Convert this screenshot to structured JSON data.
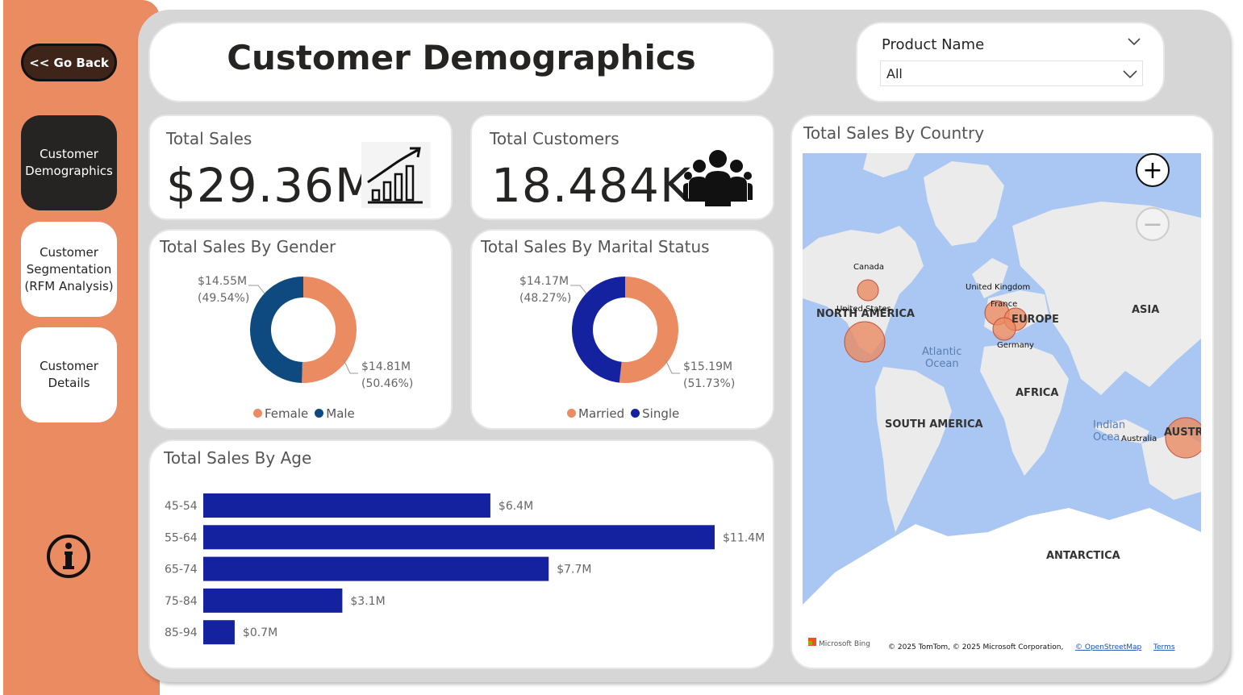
{
  "nav": {
    "back_label": "<< Go Back",
    "items": [
      {
        "label": "Customer Demographics",
        "active": true
      },
      {
        "label": "Customer Segmentation (RFM Analysis)",
        "active": false
      },
      {
        "label": "Customer Details",
        "active": false
      }
    ],
    "info_icon": "info-icon"
  },
  "header": {
    "title": "Customer Demographics"
  },
  "slicer": {
    "label": "Product Name",
    "value": "All"
  },
  "kpis": {
    "sales": {
      "title": "Total Sales",
      "value": "$29.36M",
      "icon": "growth-chart-icon"
    },
    "customers": {
      "title": "Total Customers",
      "value": "18.484K",
      "icon": "people-group-icon"
    }
  },
  "colors": {
    "accent": "#EA8B62",
    "navy": "#0E4A80",
    "royal": "#1422A0",
    "bar": "#1422A0",
    "dark": "#252423"
  },
  "chart_data": [
    {
      "type": "pie",
      "title": "Total Sales By Gender",
      "categories": [
        "Female",
        "Male"
      ],
      "values": [
        14.81,
        14.55
      ],
      "labels": [
        "$14.81M",
        "$14.55M"
      ],
      "percents": [
        "(50.46%)",
        "(49.54%)"
      ],
      "colors": [
        "#EA8B62",
        "#0E4A80"
      ],
      "legend": "bottom"
    },
    {
      "type": "pie",
      "title": "Total Sales By Marital Status",
      "categories": [
        "Married",
        "Single"
      ],
      "values": [
        15.19,
        14.17
      ],
      "labels": [
        "$15.19M",
        "$14.17M"
      ],
      "percents": [
        "(51.73%)",
        "(48.27%)"
      ],
      "colors": [
        "#EA8B62",
        "#1422A0"
      ],
      "legend": "bottom"
    },
    {
      "type": "bar",
      "title": "Total Sales By Age",
      "categories": [
        "45-54",
        "55-64",
        "65-74",
        "75-84",
        "85-94"
      ],
      "values": [
        6.4,
        11.4,
        7.7,
        3.1,
        0.7
      ],
      "labels": [
        "$6.4M",
        "$11.4M",
        "$7.7M",
        "$3.1M",
        "$0.7M"
      ],
      "orientation": "horizontal"
    }
  ],
  "map": {
    "title": "Total Sales By Country",
    "regions": [
      "NORTH AMERICA",
      "EUROPE",
      "ASIA",
      "AFRICA",
      "SOUTH AMERICA",
      "ANTARCTICA",
      "AUSTRA"
    ],
    "oceans": [
      "Atlantic",
      "Ocean",
      "Indian",
      "Ocea"
    ],
    "countries": [
      "Canada",
      "United States",
      "United Kingdom",
      "France",
      "Germany",
      "Australia"
    ],
    "attribution": "© 2025 TomTom, © 2025 Microsoft Corporation,",
    "osm": "© OpenStreetMap",
    "terms": "Terms",
    "brand": "Microsoft Bing",
    "zoom_in": "+",
    "zoom_out": "−"
  }
}
